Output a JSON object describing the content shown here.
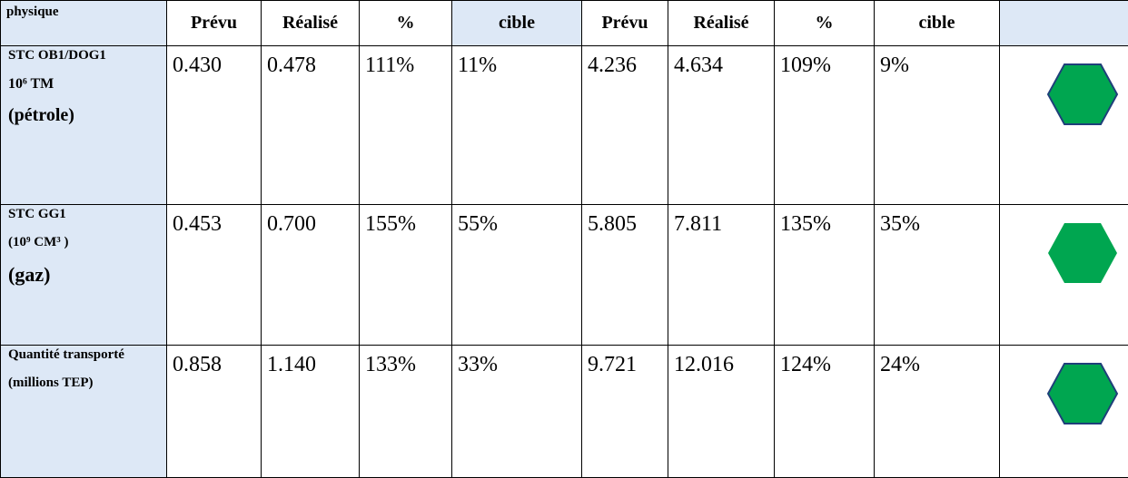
{
  "table": {
    "header": [
      "physique",
      "Prévu",
      "Réalisé",
      "%",
      "cible",
      "Prévu",
      "Réalisé",
      "%",
      "cible"
    ],
    "rows": [
      {
        "label": [
          "STC OB1/DOG1",
          "10⁶ TM",
          "(pétrole)"
        ],
        "values": [
          "0.430",
          "0.478",
          "111%",
          "11%",
          "4.236",
          "4.634",
          "109%",
          "9%"
        ]
      },
      {
        "label": [
          "STC GG1",
          "(10⁹ CM³ )",
          "(gaz)"
        ],
        "values": [
          "0.453",
          "0.700",
          "155%",
          "55%",
          "5.805",
          "7.811",
          "135%",
          "35%"
        ]
      },
      {
        "label": [
          "Quantité transporté",
          "(millions TEP)"
        ],
        "values": [
          "0.858",
          "1.140",
          "133%",
          "33%",
          "9.721",
          "12.016",
          "124%",
          "24%"
        ]
      }
    ]
  }
}
